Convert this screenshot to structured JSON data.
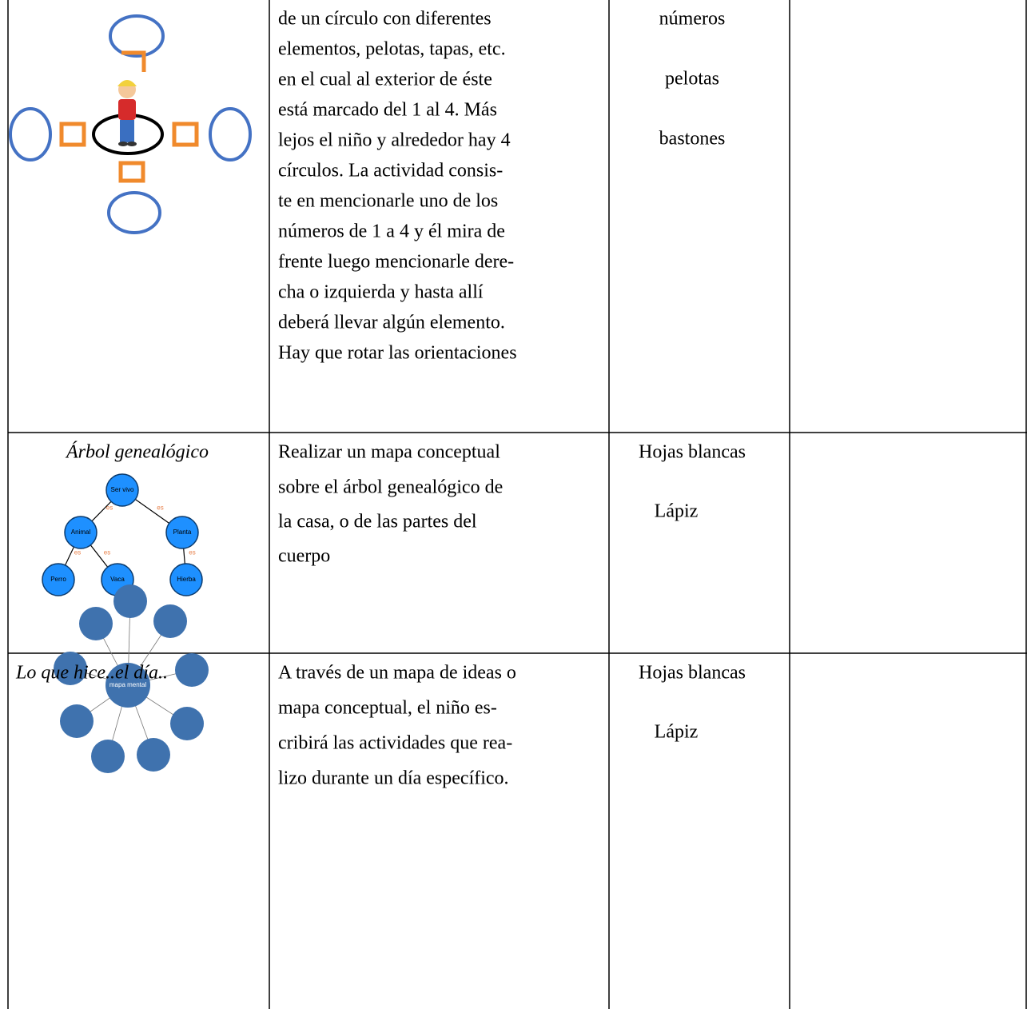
{
  "table": {
    "rows": [
      {
        "activity": null,
        "description": [
          "de un círculo con diferentes",
          "elementos, pelotas, tapas, etc.",
          "en el cual al exterior de éste",
          "está marcado del 1 al 4. Más",
          "lejos el niño y alrededor hay 4",
          "círculos.   La actividad consis-",
          "te en mencionarle uno de los",
          "números de 1 a 4 y él mira de",
          "frente luego mencionarle dere-",
          "cha o izquierda y hasta allí",
          "deberá llevar algún elemento.",
          "Hay que rotar las orientaciones"
        ],
        "materials": [
          "números",
          "pelotas",
          "bastones"
        ]
      },
      {
        "activity": "Árbol genealógico",
        "description": [
          "Realizar un mapa conceptual",
          "sobre el árbol genealógico de",
          "la casa, o de las partes del",
          "cuerpo"
        ],
        "materials": [
          "Hojas blancas",
          "Lápiz"
        ]
      },
      {
        "activity": "Lo que hice..el día..",
        "description": [
          "A través de un mapa de ideas o",
          "mapa conceptual, el niño es-",
          "cribirá las actividades que rea-",
          "lizo durante un día específico."
        ],
        "materials": [
          "Hojas blancas",
          "Lápiz"
        ]
      }
    ],
    "tree_diagram": {
      "nodes": [
        "Ser vivo",
        "Animal",
        "Planta",
        "Perro",
        "Vaca",
        "Hierba"
      ],
      "edge_label": "es"
    },
    "mind_map": {
      "center": "mapa mental"
    }
  }
}
